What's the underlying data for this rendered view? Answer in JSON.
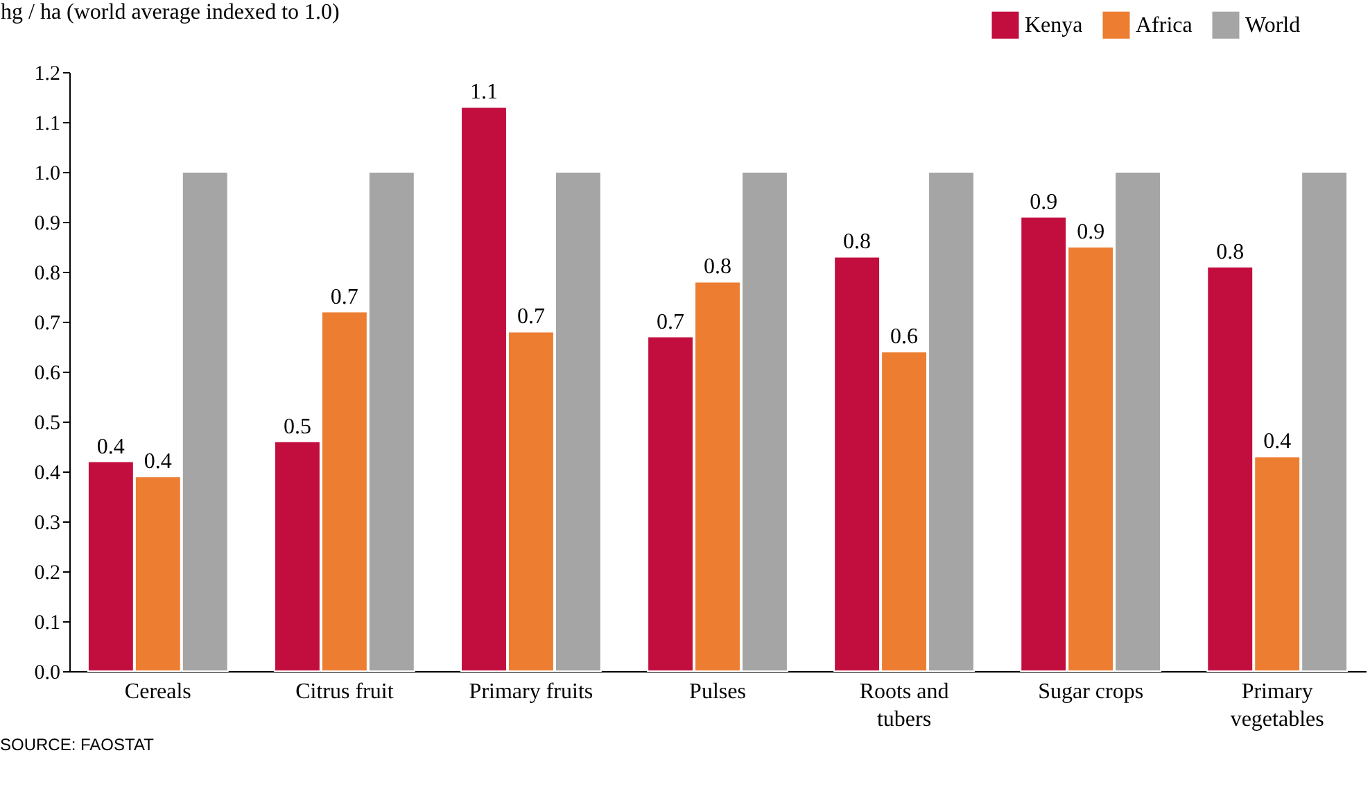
{
  "chart_data": {
    "type": "bar",
    "ylabel": "hg / ha (world average indexed to 1.0)",
    "categories": [
      "Cereals",
      "Citrus fruit",
      "Primary fruits",
      "Pulses",
      "Roots and\ntubers",
      "Sugar crops",
      "Primary\nvegetables"
    ],
    "series": [
      {
        "name": "Kenya",
        "color": "#c20e3e",
        "values": [
          0.42,
          0.46,
          1.13,
          0.67,
          0.83,
          0.91,
          0.81
        ],
        "value_labels": [
          "0.4",
          "0.5",
          "1.1",
          "0.7",
          "0.8",
          "0.9",
          "0.8"
        ]
      },
      {
        "name": "Africa",
        "color": "#ed7d31",
        "values": [
          0.39,
          0.72,
          0.68,
          0.78,
          0.64,
          0.85,
          0.43
        ],
        "value_labels": [
          "0.4",
          "0.7",
          "0.7",
          "0.8",
          "0.6",
          "0.9",
          "0.4"
        ]
      },
      {
        "name": "World",
        "color": "#a5a5a5",
        "values": [
          1.0,
          1.0,
          1.0,
          1.0,
          1.0,
          1.0,
          1.0
        ]
      }
    ],
    "ylim": [
      0,
      1.2
    ],
    "yticks": [
      {
        "value": 0,
        "label": "0.0"
      },
      0.1,
      0.2,
      0.3,
      0.4,
      0.5,
      0.6,
      0.7,
      0.8,
      0.9,
      {
        "value": 1,
        "label": "1.0"
      },
      1.1,
      1.2
    ],
    "legend": "top right",
    "grid": false,
    "annotations": [
      "SOURCE: FAOSTAT"
    ]
  }
}
